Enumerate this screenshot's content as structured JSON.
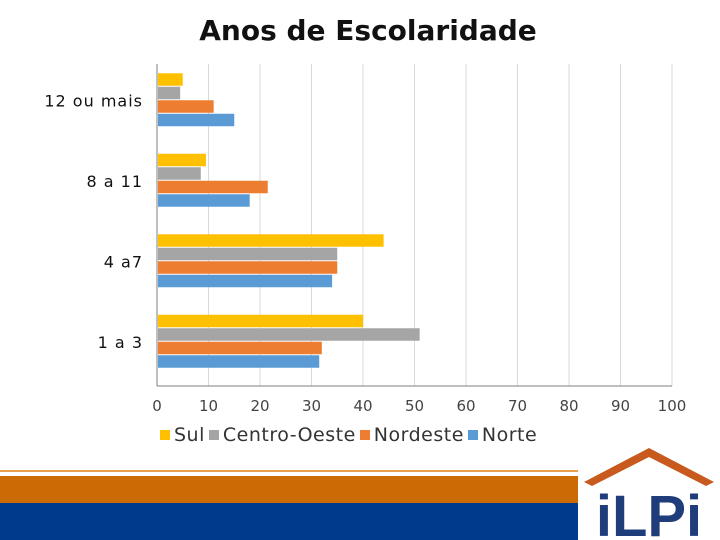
{
  "chart_data": {
    "type": "bar",
    "orientation": "horizontal",
    "title": "Anos de Escolaridade",
    "categories": [
      "12 ou  mais",
      "8 a 11",
      "4 a7",
      "1 a 3"
    ],
    "series": [
      {
        "name": "Sul",
        "color": "#ffc000",
        "values": [
          5,
          9.5,
          44,
          40
        ]
      },
      {
        "name": "Centro-Oeste",
        "color": "#a5a5a5",
        "values": [
          4.5,
          8.5,
          35,
          51
        ]
      },
      {
        "name": "Nordeste",
        "color": "#ed7d31",
        "values": [
          11,
          21.5,
          35,
          32
        ]
      },
      {
        "name": "Norte",
        "color": "#5b9bd5",
        "values": [
          15,
          18,
          34,
          31.5
        ]
      }
    ],
    "xticks": [
      "0",
      "10",
      "20",
      "30",
      "40",
      "50",
      "60",
      "70",
      "80",
      "90",
      "100"
    ],
    "xlim": [
      0,
      100
    ],
    "grid": true,
    "legend_position": "bottom"
  },
  "footer": {
    "band_orange_color": "#cc6a06",
    "band_blue_color": "#003a8c",
    "logo_text": "iLPi",
    "logo_color": "#1f3d7a",
    "roof_color": "#c85a1e"
  }
}
